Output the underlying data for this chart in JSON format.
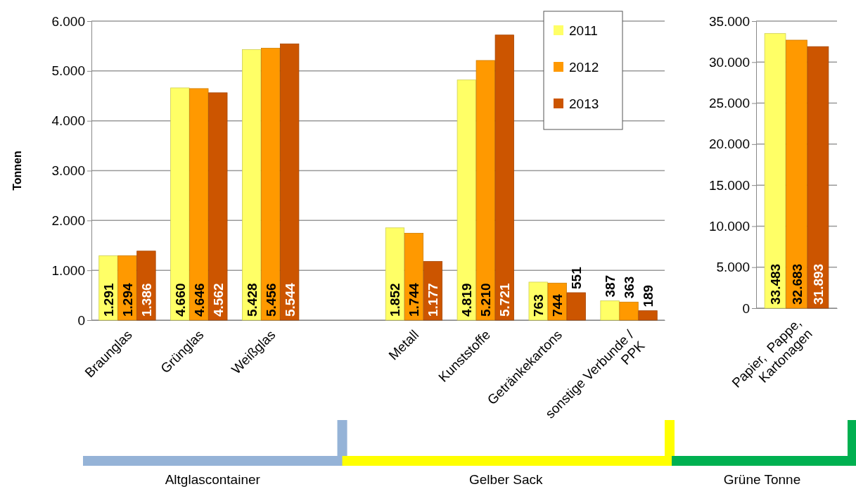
{
  "chart_data": [
    {
      "type": "bar",
      "ylabel": "Tonnen",
      "categories": [
        "Braunglas",
        "Grünglas",
        "Weißglas",
        null,
        "Metall",
        "Kunststoffe",
        "Getränkekartons",
        "sonstige Verbunde / PPK"
      ],
      "series": [
        {
          "name": "2011",
          "color": "#ffff66",
          "values": [
            1291,
            4660,
            5428,
            null,
            1852,
            4819,
            763,
            387
          ],
          "value_labels": [
            "1.291",
            "4.660",
            "5.428",
            null,
            "1.852",
            "4.819",
            "763",
            "387"
          ]
        },
        {
          "name": "2012",
          "color": "#ff9900",
          "values": [
            1294,
            4646,
            5456,
            null,
            1744,
            5210,
            744,
            363
          ],
          "value_labels": [
            "1.294",
            "4.646",
            "5.456",
            null,
            "1.744",
            "5.210",
            "744",
            "363"
          ]
        },
        {
          "name": "2013",
          "color": "#cc5500",
          "values": [
            1386,
            4562,
            5544,
            null,
            1177,
            5721,
            551,
            189
          ],
          "value_labels": [
            "1.386",
            "4.562",
            "5.544",
            null,
            "1.177",
            "5.721",
            "551",
            "189"
          ]
        }
      ],
      "ylim": [
        0,
        6000
      ],
      "yticks": [
        {
          "value": 0,
          "label": "0"
        },
        {
          "value": 1000,
          "label": "1.000"
        },
        {
          "value": 2000,
          "label": "2.000"
        },
        {
          "value": 3000,
          "label": "3.000"
        },
        {
          "value": 4000,
          "label": "4.000"
        },
        {
          "value": 5000,
          "label": "5.000"
        },
        {
          "value": 6000,
          "label": "6.000"
        }
      ],
      "grid": "y",
      "legend": "top right",
      "annotations": [
        "Altglascontainer",
        "Gelber Sack"
      ]
    },
    {
      "type": "bar",
      "categories": [
        "Papier,  Pappe, Kartonagen"
      ],
      "series": [
        {
          "color": "#ffff66",
          "values": [
            33483
          ],
          "value_labels": [
            "33.483"
          ]
        },
        {
          "color": "#ff9900",
          "values": [
            32683
          ],
          "value_labels": [
            "32.683"
          ]
        },
        {
          "color": "#cc5500",
          "values": [
            31893
          ],
          "value_labels": [
            "31.893"
          ]
        }
      ],
      "ylim": [
        0,
        35000
      ],
      "yticks": [
        {
          "value": 0,
          "label": "0"
        },
        {
          "value": 5000,
          "label": "5.000"
        },
        {
          "value": 10000,
          "label": "10.000"
        },
        {
          "value": 15000,
          "label": "15.000"
        },
        {
          "value": 20000,
          "label": "20.000"
        },
        {
          "value": 25000,
          "label": "25.000"
        },
        {
          "value": 30000,
          "label": "30.000"
        },
        {
          "value": 35000,
          "label": "35.000"
        }
      ],
      "grid": "y",
      "annotations": [
        "Grüne Tonne"
      ]
    }
  ]
}
